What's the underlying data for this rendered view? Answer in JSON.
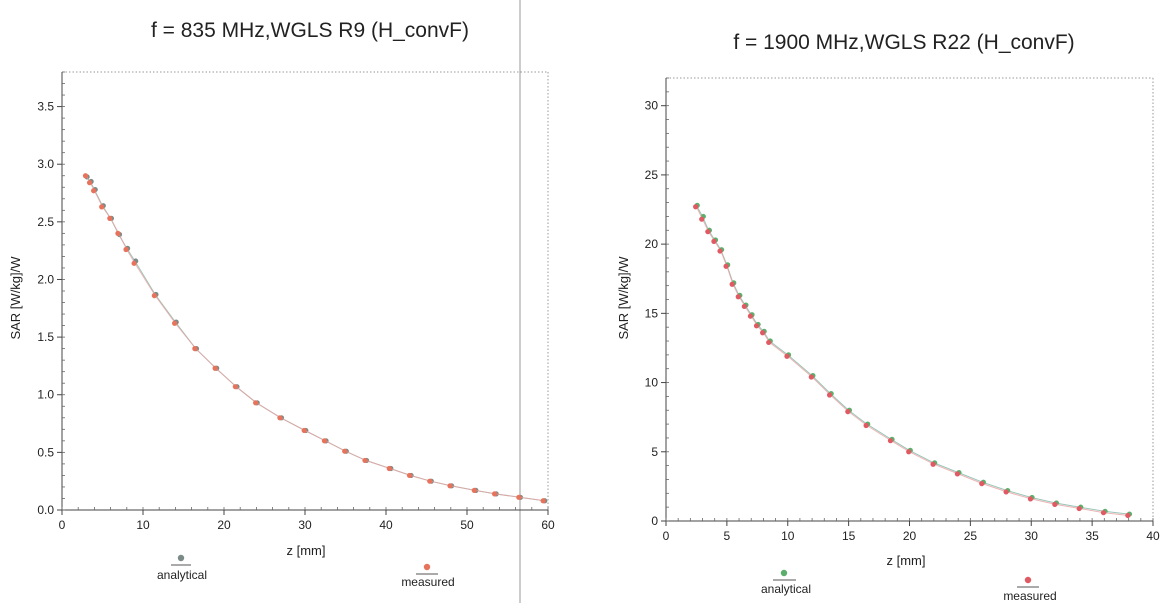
{
  "chart_data": [
    {
      "type": "scatter",
      "title": "f = 835 MHz,WGLS R9 (H_convF)",
      "xlabel": "z [mm]",
      "ylabel": "SAR [W/kg]/W",
      "xlim": [
        0,
        60
      ],
      "ylim": [
        0,
        3.8
      ],
      "xticks": [
        0,
        10,
        20,
        30,
        40,
        50,
        60
      ],
      "xtick_labels": [
        "0",
        "10",
        "20",
        "30",
        "40",
        "50",
        "60"
      ],
      "yticks": [
        0,
        0.5,
        1.0,
        1.5,
        2.0,
        2.5,
        3.0,
        3.5
      ],
      "ytick_labels": [
        "0.0",
        "0.5",
        "1.0",
        "1.5",
        "2.0",
        "2.5",
        "3.0",
        "3.5"
      ],
      "grid": false,
      "legend_position": "bottom",
      "series": [
        {
          "name": "analytical",
          "color": "#7a8a86",
          "x": [
            3.0,
            3.5,
            4.0,
            5.0,
            6.0,
            7.0,
            8.0,
            9.0,
            11.5,
            14.0,
            16.5,
            19.0,
            21.5,
            24.0,
            27.0,
            30.0,
            32.5,
            35.0,
            37.5,
            40.5,
            43.0,
            45.5,
            48.0,
            51.0,
            53.5,
            56.5,
            59.5
          ],
          "y": [
            2.89,
            2.85,
            2.78,
            2.64,
            2.53,
            2.39,
            2.27,
            2.16,
            1.87,
            1.63,
            1.4,
            1.23,
            1.07,
            0.93,
            0.8,
            0.69,
            0.6,
            0.51,
            0.43,
            0.36,
            0.3,
            0.25,
            0.21,
            0.17,
            0.14,
            0.11,
            0.08
          ]
        },
        {
          "name": "measured",
          "color": "#e8735c",
          "x": [
            3.0,
            3.5,
            4.0,
            5.0,
            6.0,
            7.0,
            8.0,
            9.0,
            11.5,
            14.0,
            16.5,
            19.0,
            21.5,
            24.0,
            27.0,
            30.0,
            32.5,
            35.0,
            37.5,
            40.5,
            43.0,
            45.5,
            48.0,
            51.0,
            53.5,
            56.5,
            59.5
          ],
          "y": [
            2.9,
            2.84,
            2.77,
            2.63,
            2.53,
            2.4,
            2.26,
            2.14,
            1.86,
            1.62,
            1.4,
            1.23,
            1.07,
            0.93,
            0.8,
            0.69,
            0.6,
            0.51,
            0.43,
            0.36,
            0.3,
            0.25,
            0.21,
            0.17,
            0.14,
            0.11,
            0.08
          ]
        }
      ]
    },
    {
      "type": "scatter",
      "title": "f = 1900 MHz,WGLS R22 (H_convF)",
      "xlabel": "z [mm]",
      "ylabel": "SAR [W/kg]/W",
      "xlim": [
        0,
        40
      ],
      "ylim": [
        0,
        32
      ],
      "xticks": [
        0,
        5,
        10,
        15,
        20,
        25,
        30,
        35,
        40
      ],
      "xtick_labels": [
        "0",
        "5",
        "10",
        "15",
        "20",
        "25",
        "30",
        "35",
        "40"
      ],
      "yticks": [
        0,
        5,
        10,
        15,
        20,
        25,
        30
      ],
      "ytick_labels": [
        "0",
        "5",
        "10",
        "15",
        "20",
        "25",
        "30"
      ],
      "grid": false,
      "legend_position": "bottom",
      "series": [
        {
          "name": "analytical",
          "color": "#5cae6c",
          "x": [
            2.5,
            3.0,
            3.5,
            4.0,
            4.5,
            5.0,
            5.5,
            6.0,
            6.5,
            7.0,
            7.5,
            8.0,
            8.5,
            10.0,
            12.0,
            13.5,
            15.0,
            16.5,
            18.5,
            20.0,
            22.0,
            24.0,
            26.0,
            28.0,
            30.0,
            32.0,
            34.0,
            36.0,
            38.0
          ],
          "y": [
            22.8,
            22.0,
            21.0,
            20.3,
            19.6,
            18.5,
            17.2,
            16.3,
            15.6,
            14.9,
            14.2,
            13.7,
            13.0,
            12.0,
            10.5,
            9.2,
            8.0,
            7.0,
            5.9,
            5.1,
            4.2,
            3.5,
            2.8,
            2.2,
            1.7,
            1.3,
            1.0,
            0.7,
            0.5
          ]
        },
        {
          "name": "measured",
          "color": "#e05a64",
          "x": [
            2.5,
            3.0,
            3.5,
            4.0,
            4.5,
            5.0,
            5.5,
            6.0,
            6.5,
            7.0,
            7.5,
            8.0,
            8.5,
            10.0,
            12.0,
            13.5,
            15.0,
            16.5,
            18.5,
            20.0,
            22.0,
            24.0,
            26.0,
            28.0,
            30.0,
            32.0,
            34.0,
            36.0,
            38.0
          ],
          "y": [
            22.7,
            21.8,
            20.9,
            20.2,
            19.5,
            18.4,
            17.1,
            16.2,
            15.5,
            14.8,
            14.1,
            13.6,
            12.9,
            11.9,
            10.4,
            9.1,
            7.9,
            6.9,
            5.8,
            5.0,
            4.1,
            3.4,
            2.7,
            2.1,
            1.6,
            1.2,
            0.9,
            0.6,
            0.4
          ]
        }
      ]
    }
  ]
}
